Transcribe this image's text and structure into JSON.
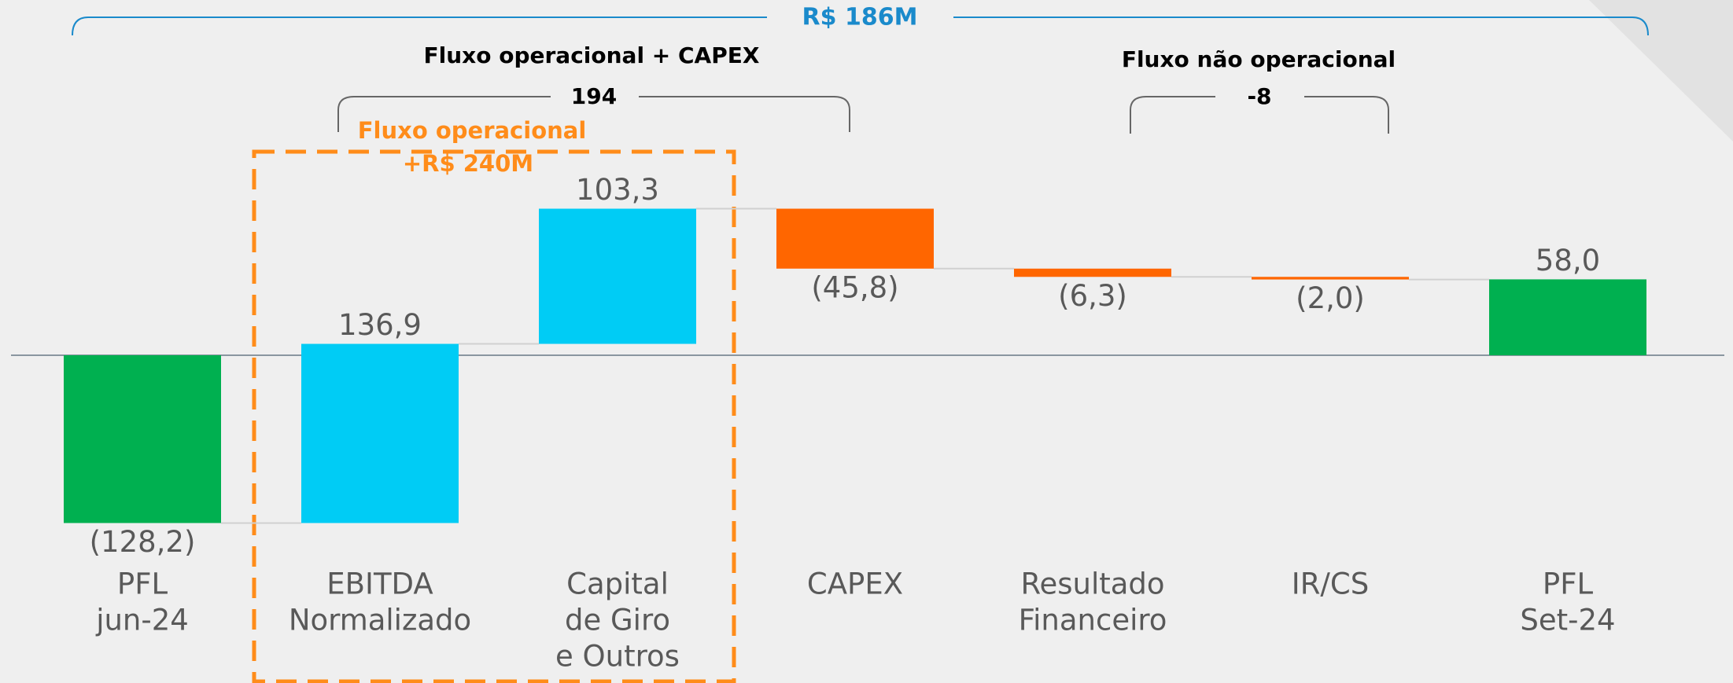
{
  "chart_data": {
    "type": "waterfall",
    "categories": [
      [
        "PFL",
        "jun-24"
      ],
      [
        "EBITDA",
        "Normalizado"
      ],
      [
        "Capital",
        "de Giro",
        "e Outros"
      ],
      [
        "CAPEX"
      ],
      [
        "Resultado",
        "Financeiro"
      ],
      [
        "IR/CS"
      ],
      [
        "PFL",
        "Set-24"
      ]
    ],
    "values": [
      -128.2,
      136.9,
      103.3,
      -45.8,
      -6.3,
      -2.0,
      58.0
    ],
    "value_labels": [
      "(128,2)",
      "136,9",
      "103,3",
      "(45,8)",
      "(6,3)",
      "(2,0)",
      "58,0"
    ],
    "measure": [
      "absolute",
      "relative",
      "relative",
      "relative",
      "relative",
      "relative",
      "total"
    ],
    "colors": [
      "#00b050",
      "#00ccf5",
      "#00ccf5",
      "#ff6600",
      "#ff6600",
      "#ff6600",
      "#00b050"
    ],
    "ylim": [
      -200,
      200
    ],
    "annotations": {
      "total_change": "R$ 186M",
      "operational_capex_title": "Fluxo operacional + CAPEX",
      "operational_capex_value": "194",
      "non_operational_title": "Fluxo não operacional",
      "non_operational_value": "-8",
      "operational_title": "Fluxo operacional",
      "operational_value": "+R$ 240M"
    }
  }
}
